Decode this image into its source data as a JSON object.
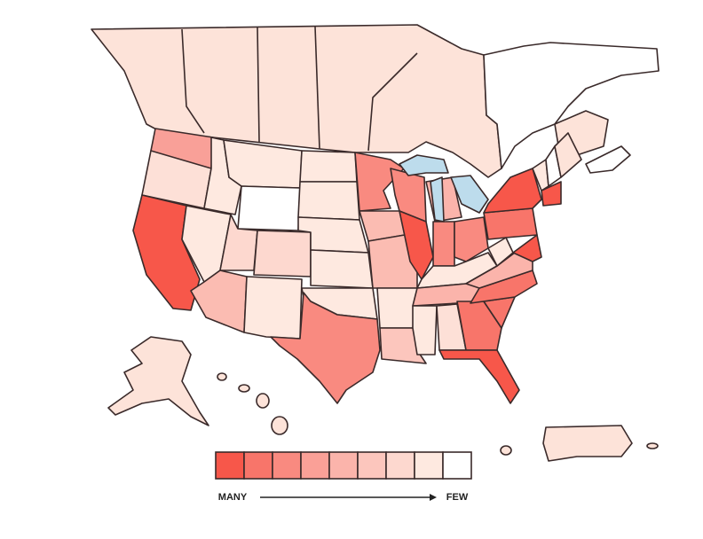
{
  "legend": {
    "colors": [
      "#f7574a",
      "#f8756a",
      "#f98a80",
      "#faa097",
      "#fbb4ab",
      "#fcc6bd",
      "#fdd8cf",
      "#fee9e0",
      "#ffffff"
    ],
    "low_label": "MANY",
    "high_label": "FEW"
  }
}
